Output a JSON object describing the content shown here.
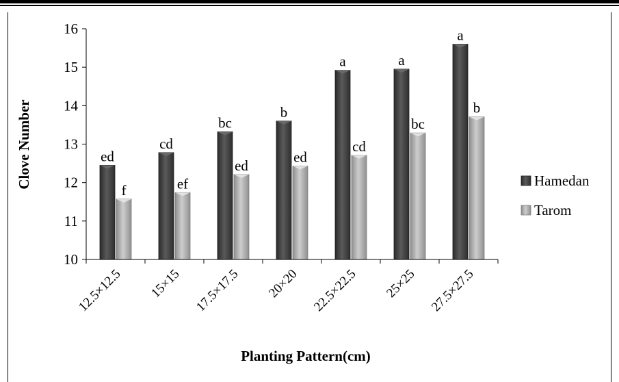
{
  "chart_data": {
    "type": "bar",
    "xlabel": "Planting Pattern(cm)",
    "ylabel": "Clove Number",
    "ylim": [
      10,
      16
    ],
    "yticks": [
      "10",
      "11",
      "12",
      "13",
      "14",
      "15",
      "16"
    ],
    "categories": [
      "12.5×12.5",
      "15×15",
      "17.5×17.5",
      "20×20",
      "22.5×22.5",
      "25×25",
      "27.5×27.5"
    ],
    "series": [
      {
        "name": "Hamedan",
        "color": "#3a3a3a",
        "values": [
          12.45,
          12.78,
          13.32,
          13.6,
          14.92,
          14.95,
          15.6
        ],
        "labels": [
          "ed",
          "cd",
          "bc",
          "b",
          "a",
          "a",
          "a"
        ]
      },
      {
        "name": "Tarom",
        "color": "#a6a6a6",
        "values": [
          11.57,
          11.74,
          12.21,
          12.43,
          12.71,
          13.29,
          13.71
        ],
        "labels": [
          "f",
          "ef",
          "ed",
          "ed",
          "cd",
          "bc",
          "b"
        ]
      }
    ],
    "legend_position": "right",
    "grid": false
  }
}
